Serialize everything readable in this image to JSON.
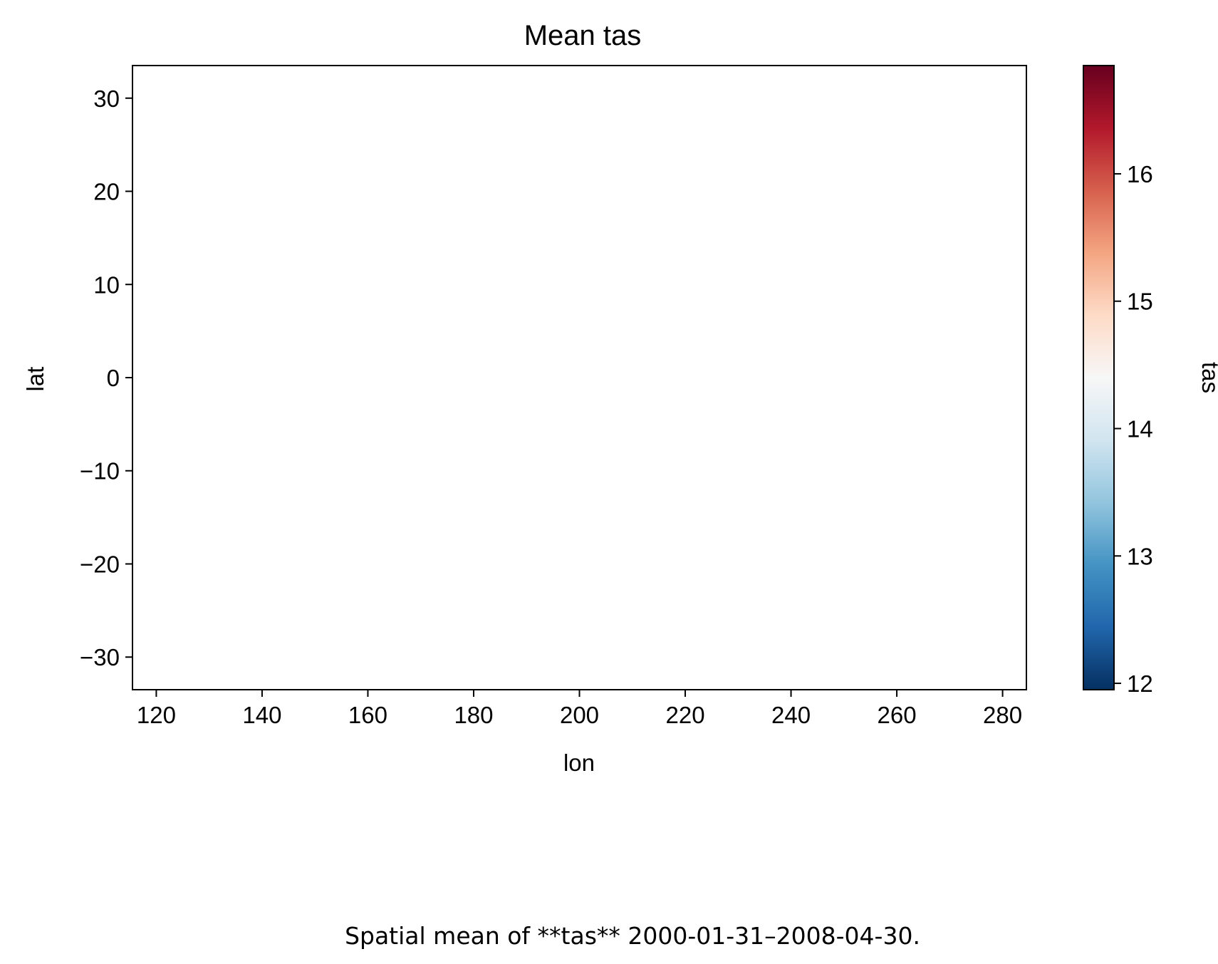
{
  "chart_data": {
    "type": "heatmap",
    "title": "Mean tas",
    "xlabel": "lon",
    "ylabel": "lat",
    "xlim": [
      115.5,
      284.5
    ],
    "ylim": [
      -33.5,
      33.5
    ],
    "x_ticks": [
      120,
      140,
      160,
      180,
      200,
      220,
      240,
      260,
      280
    ],
    "y_ticks": [
      30,
      20,
      10,
      0,
      -10,
      -20,
      -30
    ],
    "x_tick_labels": [
      "120",
      "140",
      "160",
      "180",
      "200",
      "220",
      "240",
      "260",
      "280"
    ],
    "y_tick_labels": [
      "30",
      "20",
      "10",
      "0",
      "−10",
      "−20",
      "−30"
    ],
    "grid": false,
    "values": [],
    "colorbar": {
      "label": "tas",
      "colormap": "RdBu_r",
      "vmin": 11.95,
      "vmax": 16.85,
      "ticks": [
        12,
        13,
        14,
        15,
        16
      ],
      "tick_labels": [
        "12",
        "13",
        "14",
        "15",
        "16"
      ],
      "colors": [
        "#053061",
        "#2166ac",
        "#4393c3",
        "#92c5de",
        "#d1e5f0",
        "#f7f7f7",
        "#fddbc7",
        "#f4a582",
        "#d6604d",
        "#b2182b",
        "#67001f"
      ]
    }
  },
  "caption": "Spatial mean of **tas** 2000-01-31–2008-04-30."
}
